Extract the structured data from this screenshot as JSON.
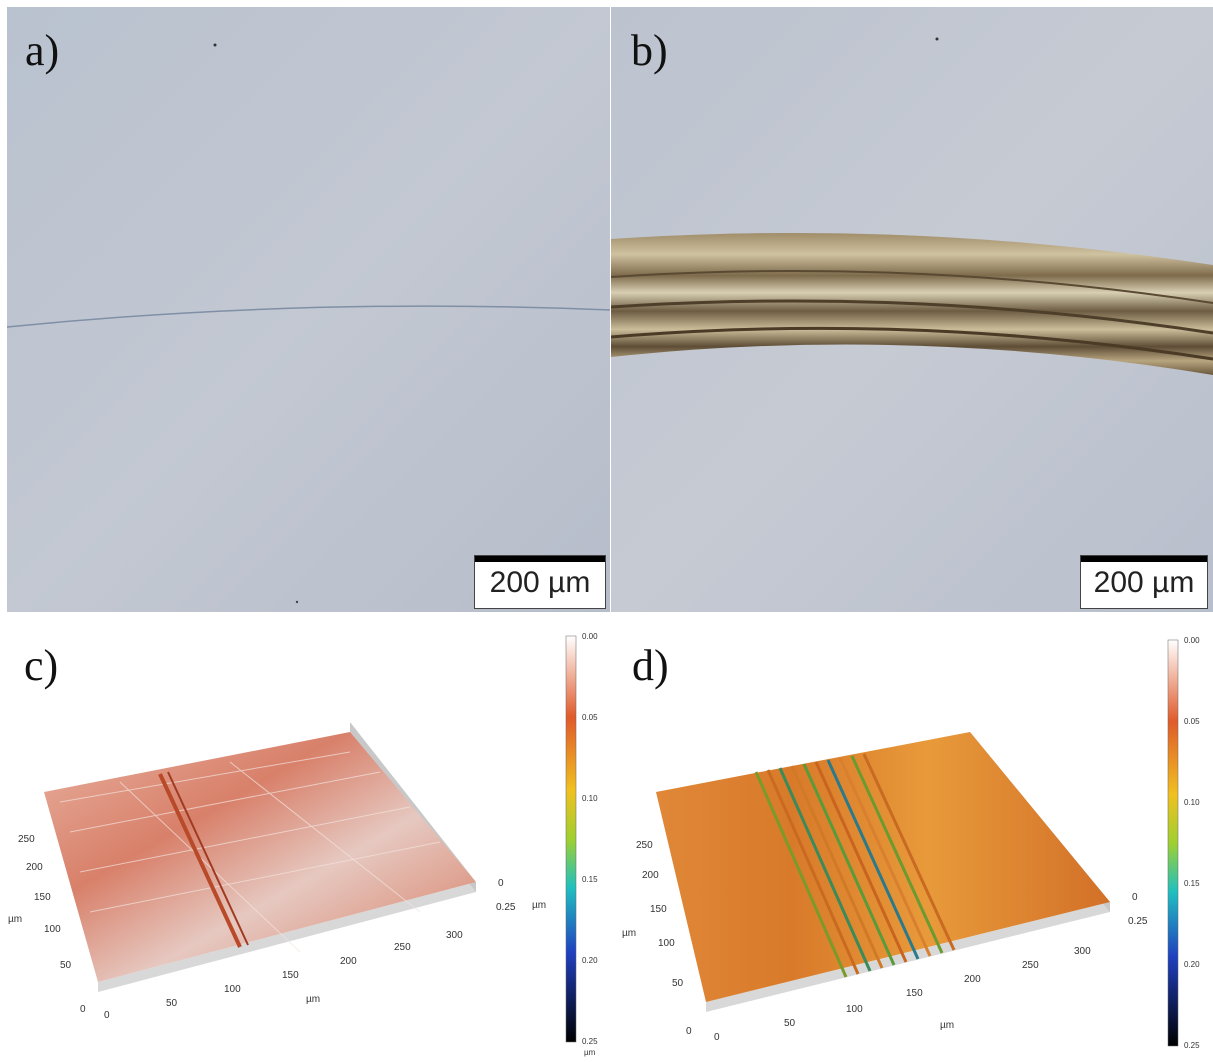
{
  "panels": {
    "a": {
      "label": "a)",
      "scale_text": "200 µm"
    },
    "b": {
      "label": "b)",
      "scale_text": "200 µm"
    },
    "c": {
      "label": "c)",
      "y_ticks": [
        "250",
        "200",
        "150",
        "100",
        "50",
        "0"
      ],
      "x_ticks": [
        "0",
        "50",
        "100",
        "150",
        "200",
        "250",
        "300"
      ],
      "z_ticks": [
        "0",
        "0.25"
      ],
      "y_unit": "µm",
      "x_unit": "µm",
      "z_unit": "µm",
      "colorbar_ticks": [
        "0.00",
        "0.05",
        "0.10",
        "0.15",
        "0.20",
        "0.25"
      ],
      "colorbar_unit": "µm"
    },
    "d": {
      "label": "d)",
      "y_ticks": [
        "250",
        "200",
        "150",
        "100",
        "50",
        "0"
      ],
      "x_ticks": [
        "0",
        "50",
        "100",
        "150",
        "200",
        "250",
        "300"
      ],
      "z_ticks": [
        "0",
        "0.25"
      ],
      "y_unit": "µm",
      "x_unit": "µm",
      "colorbar_ticks": [
        "0.00",
        "0.05",
        "0.10",
        "0.15",
        "0.20",
        "0.25"
      ]
    }
  },
  "colors": {
    "micrograph_bg": "#b8c0cc",
    "wear_track": "#8a7a5c",
    "surface_c": "#d9a090",
    "surface_d": "#d98c3a"
  }
}
